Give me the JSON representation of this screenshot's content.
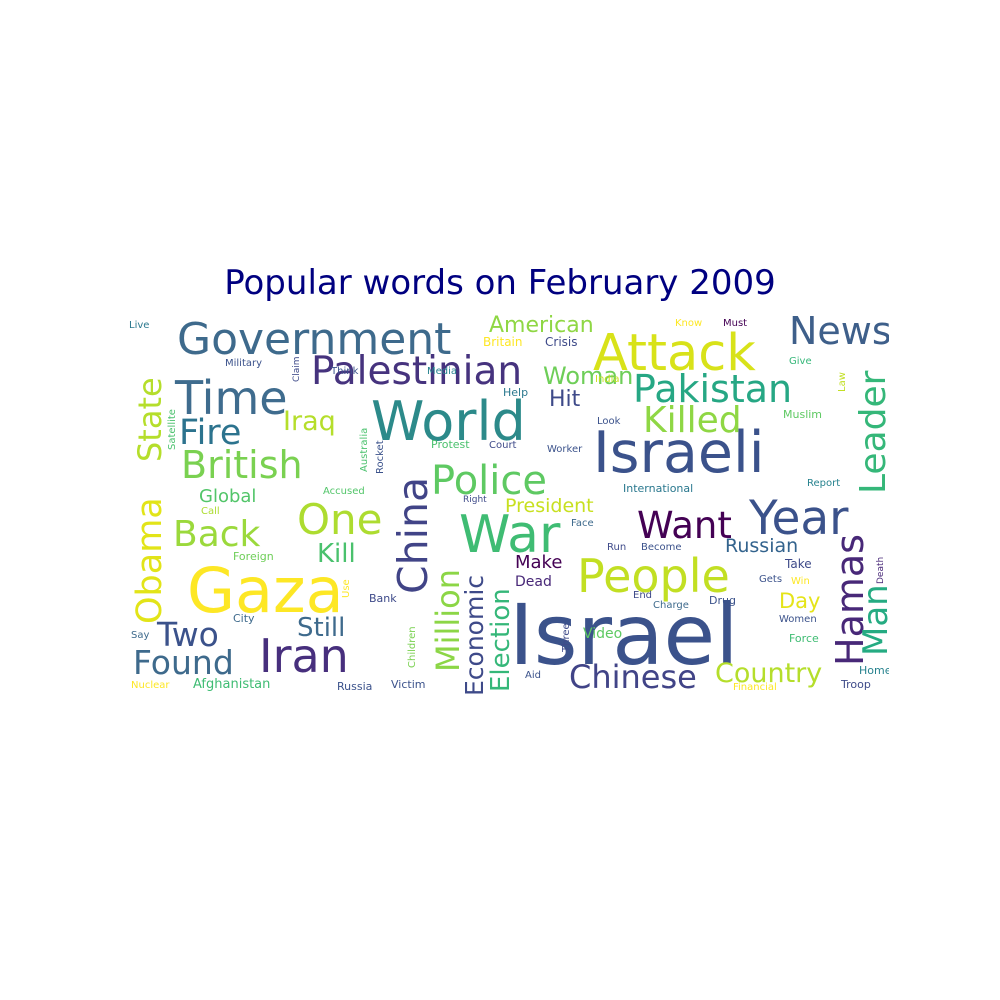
{
  "chart_data": {
    "type": "wordcloud",
    "title": "Popular words on February 2009",
    "words": [
      {
        "text": "Israel",
        "color": "#3b528b"
      },
      {
        "text": "Israeli",
        "color": "#3b528b"
      },
      {
        "text": "Gaza",
        "color": "#fde725"
      },
      {
        "text": "Government",
        "color": "#3e6a8c"
      },
      {
        "text": "Attack",
        "color": "#d8e219"
      },
      {
        "text": "World",
        "color": "#2c8a8a"
      },
      {
        "text": "War",
        "color": "#3fbc73"
      },
      {
        "text": "Iran",
        "color": "#472f7d"
      },
      {
        "text": "People",
        "color": "#c2df23"
      },
      {
        "text": "Palestinian",
        "color": "#46337e"
      },
      {
        "text": "Year",
        "color": "#3b528b"
      },
      {
        "text": "Time",
        "color": "#3f6c8e"
      },
      {
        "text": "Obama",
        "color": "#e2e418"
      },
      {
        "text": "State",
        "color": "#b5de2b"
      },
      {
        "text": "China",
        "color": "#414487"
      },
      {
        "text": "Police",
        "color": "#5ec962"
      },
      {
        "text": "Pakistan",
        "color": "#26a784"
      },
      {
        "text": "News",
        "color": "#3e5f8a"
      },
      {
        "text": "Killed",
        "color": "#8fd744"
      },
      {
        "text": "British",
        "color": "#7ad151"
      },
      {
        "text": "Leader",
        "color": "#35b779"
      },
      {
        "text": "Hamas",
        "color": "#482878"
      },
      {
        "text": "Million",
        "color": "#8cd646"
      },
      {
        "text": "One",
        "color": "#addc30"
      },
      {
        "text": "Want",
        "color": "#440154"
      },
      {
        "text": "Back",
        "color": "#9bd93c"
      },
      {
        "text": "Fire",
        "color": "#2c738e"
      },
      {
        "text": "Man",
        "color": "#25ab82"
      },
      {
        "text": "Chinese",
        "color": "#414487"
      },
      {
        "text": "Two",
        "color": "#3b528b"
      },
      {
        "text": "Found",
        "color": "#3e6a8c"
      },
      {
        "text": "Economic",
        "color": "#3e4a89"
      },
      {
        "text": "Election",
        "color": "#35b779"
      },
      {
        "text": "Country",
        "color": "#b5de2b"
      },
      {
        "text": "Iraq",
        "color": "#b5de2b"
      },
      {
        "text": "Kill",
        "color": "#4ac16d"
      },
      {
        "text": "Still",
        "color": "#3e6a8c"
      },
      {
        "text": "Woman",
        "color": "#6ece58"
      },
      {
        "text": "American",
        "color": "#8fd744"
      },
      {
        "text": "Russian",
        "color": "#33638d"
      },
      {
        "text": "President",
        "color": "#c8e020"
      },
      {
        "text": "Global",
        "color": "#52c569"
      },
      {
        "text": "Hit",
        "color": "#3e4a89"
      },
      {
        "text": "Day",
        "color": "#e5e419"
      },
      {
        "text": "Make",
        "color": "#440154"
      },
      {
        "text": "Dead",
        "color": "#482878"
      },
      {
        "text": "Video",
        "color": "#5ec962"
      },
      {
        "text": "Live",
        "color": "#2a788e"
      },
      {
        "text": "Know",
        "color": "#fde725"
      },
      {
        "text": "Must",
        "color": "#440154"
      },
      {
        "text": "Britain",
        "color": "#fde725"
      },
      {
        "text": "Crisis",
        "color": "#3e4a89"
      },
      {
        "text": "Military",
        "color": "#3b528b"
      },
      {
        "text": "Claim",
        "color": "#3e4a89"
      },
      {
        "text": "Give",
        "color": "#35b779"
      },
      {
        "text": "Law",
        "color": "#c2df23"
      },
      {
        "text": "India",
        "color": "#c8e020"
      },
      {
        "text": "Satellite",
        "color": "#4ac16d"
      },
      {
        "text": "Think",
        "color": "#3b528b"
      },
      {
        "text": "Media",
        "color": "#26828e"
      },
      {
        "text": "Help",
        "color": "#2a788e"
      },
      {
        "text": "Look",
        "color": "#3b528b"
      },
      {
        "text": "Muslim",
        "color": "#5ec962"
      },
      {
        "text": "Australia",
        "color": "#4ac16d"
      },
      {
        "text": "Rocket",
        "color": "#3b528b"
      },
      {
        "text": "Protest",
        "color": "#4ac16d"
      },
      {
        "text": "Court",
        "color": "#3e4a89"
      },
      {
        "text": "Worker",
        "color": "#3b528b"
      },
      {
        "text": "Accused",
        "color": "#52c569"
      },
      {
        "text": "Right",
        "color": "#3e4a89"
      },
      {
        "text": "International",
        "color": "#2a788e"
      },
      {
        "text": "Report",
        "color": "#26828e"
      },
      {
        "text": "Call",
        "color": "#addc30"
      },
      {
        "text": "Face",
        "color": "#3e6a8c"
      },
      {
        "text": "Foreign",
        "color": "#6ece58"
      },
      {
        "text": "Run",
        "color": "#3e4a89"
      },
      {
        "text": "Become",
        "color": "#3b528b"
      },
      {
        "text": "Death",
        "color": "#482878"
      },
      {
        "text": "Use",
        "color": "#fde725"
      },
      {
        "text": "Take",
        "color": "#3e4a89"
      },
      {
        "text": "Gets",
        "color": "#3b528b"
      },
      {
        "text": "Win",
        "color": "#fde725"
      },
      {
        "text": "Bank",
        "color": "#3e4a89"
      },
      {
        "text": "End",
        "color": "#3e4a89"
      },
      {
        "text": "Charge",
        "color": "#3e6a8c"
      },
      {
        "text": "Drug",
        "color": "#3b528b"
      },
      {
        "text": "City",
        "color": "#3e6a8c"
      },
      {
        "text": "Say",
        "color": "#3e6a8c"
      },
      {
        "text": "Children",
        "color": "#7ad151"
      },
      {
        "text": "Three",
        "color": "#3e4a89"
      },
      {
        "text": "Women",
        "color": "#3b528b"
      },
      {
        "text": "Force",
        "color": "#3fbc73"
      },
      {
        "text": "Home",
        "color": "#26828e"
      },
      {
        "text": "Nuclear",
        "color": "#fde725"
      },
      {
        "text": "Afghanistan",
        "color": "#3fbc73"
      },
      {
        "text": "Russia",
        "color": "#3b528b"
      },
      {
        "text": "Victim",
        "color": "#3b528b"
      },
      {
        "text": "Aid",
        "color": "#3b528b"
      },
      {
        "text": "Financial",
        "color": "#fde725"
      },
      {
        "text": "Troop",
        "color": "#3e4a89"
      }
    ]
  }
}
